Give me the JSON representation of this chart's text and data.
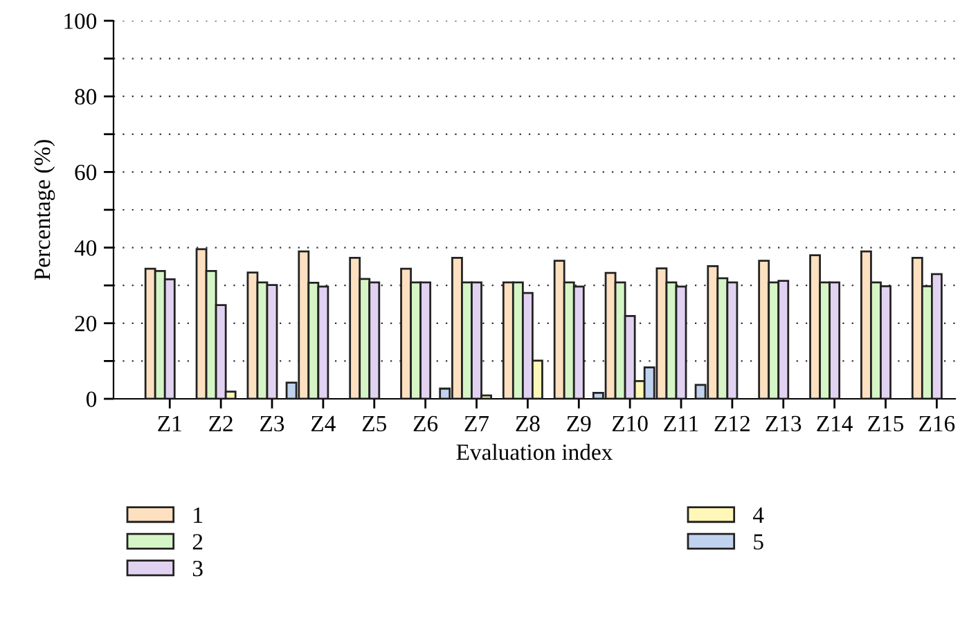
{
  "chart_data": {
    "type": "bar",
    "xlabel": "Evaluation index",
    "ylabel": "Percentage (%)",
    "categories": [
      "Z1",
      "Z2",
      "Z3",
      "Z4",
      "Z5",
      "Z6",
      "Z7",
      "Z8",
      "Z9",
      "Z10",
      "Z11",
      "Z12",
      "Z13",
      "Z14",
      "Z15",
      "Z16"
    ],
    "series": [
      {
        "name": "1",
        "color": "#fde0c0",
        "values": [
          34.4,
          39.6,
          33.4,
          39,
          37.3,
          34.4,
          37.3,
          30.8,
          36.5,
          33.3,
          34.5,
          35.1,
          36.5,
          38,
          39,
          37.3
        ]
      },
      {
        "name": "2",
        "color": "#d6f5c6",
        "values": [
          33.8,
          33.8,
          30.8,
          30.7,
          31.7,
          30.8,
          30.8,
          30.8,
          30.8,
          30.8,
          30.8,
          31.9,
          30.8,
          30.8,
          30.8,
          29.8
        ]
      },
      {
        "name": "3",
        "color": "#e2d2f2",
        "values": [
          31.6,
          24.8,
          30.1,
          29.7,
          30.8,
          30.8,
          30.8,
          28,
          29.7,
          21.9,
          29.7,
          30.8,
          31.2,
          30.8,
          29.8,
          33
        ]
      },
      {
        "name": "4",
        "color": "#fff7b8",
        "values": [
          null,
          1.9,
          null,
          null,
          null,
          null,
          0.9,
          10.1,
          null,
          4.7,
          null,
          null,
          null,
          null,
          null,
          null
        ]
      },
      {
        "name": "5",
        "color": "#c0d2ee",
        "values": [
          null,
          null,
          4.3,
          null,
          null,
          2.7,
          null,
          null,
          1.6,
          8.3,
          3.7,
          null,
          null,
          null,
          null,
          null
        ]
      }
    ],
    "ylim": [
      0,
      100
    ],
    "yticks": [
      0,
      {
        "value": 10,
        "label": null
      },
      20,
      {
        "value": 30,
        "label": null
      },
      40,
      {
        "value": 50,
        "label": null
      },
      60,
      {
        "value": 70,
        "label": null
      },
      80,
      {
        "value": 90,
        "label": null
      },
      100
    ],
    "grid": "y",
    "legend": "bottom"
  }
}
